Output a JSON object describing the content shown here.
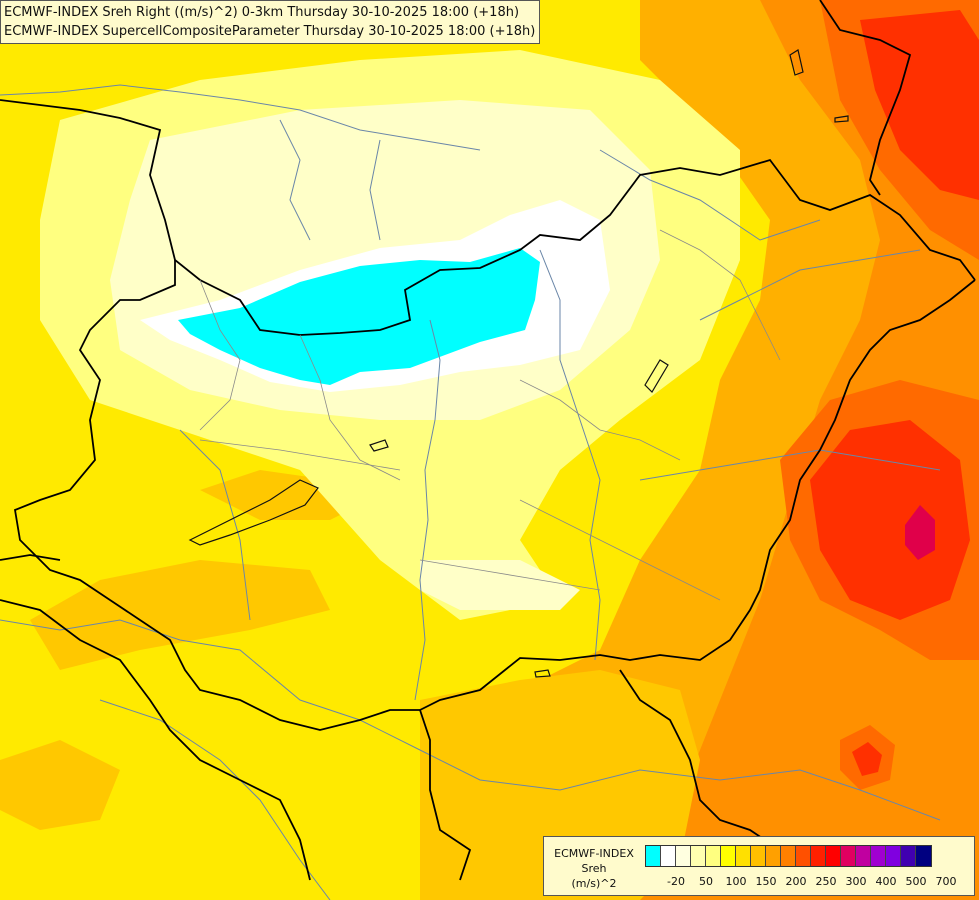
{
  "header": {
    "line1": "ECMWF-INDEX Sreh Right ((m/s)^2) 0-3km Thursday 30-10-2025 18:00 (+18h)",
    "line2": "ECMWF-INDEX SupercellCompositeParameter Thursday 30-10-2025 18:00 (+18h)"
  },
  "legend": {
    "line1": "ECMWF-INDEX",
    "line2": "Sreh",
    "line3": "(m/s)^2",
    "colors": [
      "#00ffff",
      "#ffffff",
      "#ffffe0",
      "#ffffb0",
      "#ffff80",
      "#ffff00",
      "#ffe000",
      "#ffc000",
      "#ffa000",
      "#ff8000",
      "#ff5000",
      "#ff2000",
      "#ff0000",
      "#e00060",
      "#c000a0",
      "#a000d0",
      "#8000e0",
      "#4000b0",
      "#000080"
    ],
    "ticks": [
      "-20",
      "50",
      "100",
      "150",
      "200",
      "250",
      "300",
      "400",
      "500",
      "700"
    ]
  },
  "map": {
    "field_colors": {
      "cyan": "#00ffff",
      "white": "#ffffff",
      "pale": "#ffffc8",
      "light": "#ffff99",
      "yellow": "#ffff00",
      "gold": "#ffd000",
      "orange": "#ffa500",
      "dark_orange": "#ff7a00",
      "red_orange": "#ff4000",
      "red": "#ff1010",
      "magenta": "#e0004a"
    }
  }
}
